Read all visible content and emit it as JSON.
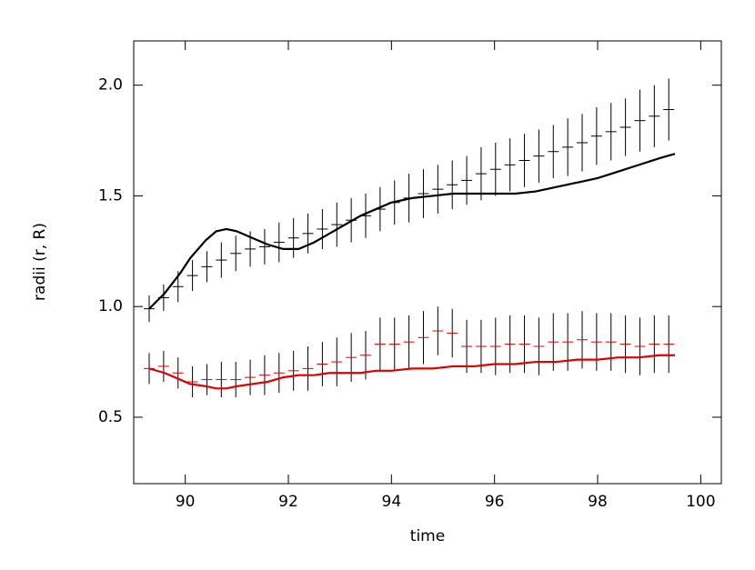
{
  "chart_data": {
    "type": "errorbar_line",
    "xlabel": "time",
    "ylabel": "radii (r, R)",
    "xlim": [
      89,
      100.4
    ],
    "ylim": [
      0.2,
      2.2
    ],
    "xticks": [
      90,
      92,
      94,
      96,
      98,
      100
    ],
    "yticks": [
      0.5,
      {
        "value": 1,
        "label": "1.0"
      },
      1.5,
      {
        "value": 2,
        "label": "2.0"
      }
    ],
    "series": [
      {
        "mode": "errorbar",
        "color": "#000000",
        "x": [
          89.3,
          89.58,
          89.86,
          90.14,
          90.42,
          90.7,
          90.98,
          91.26,
          91.54,
          91.82,
          92.1,
          92.38,
          92.66,
          92.94,
          93.22,
          93.5,
          93.78,
          94.06,
          94.34,
          94.62,
          94.9,
          95.18,
          95.46,
          95.74,
          96.02,
          96.3,
          96.58,
          96.86,
          97.14,
          97.42,
          97.7,
          97.98,
          98.26,
          98.54,
          98.82,
          99.1,
          99.38
        ],
        "values": [
          0.99,
          1.04,
          1.09,
          1.14,
          1.18,
          1.21,
          1.24,
          1.26,
          1.27,
          1.29,
          1.31,
          1.33,
          1.35,
          1.37,
          1.39,
          1.41,
          1.44,
          1.47,
          1.49,
          1.51,
          1.53,
          1.55,
          1.57,
          1.6,
          1.62,
          1.64,
          1.66,
          1.68,
          1.7,
          1.72,
          1.74,
          1.77,
          1.79,
          1.81,
          1.84,
          1.86,
          1.89
        ],
        "errors": [
          0.06,
          0.06,
          0.07,
          0.07,
          0.07,
          0.08,
          0.08,
          0.08,
          0.08,
          0.09,
          0.09,
          0.09,
          0.09,
          0.1,
          0.1,
          0.1,
          0.1,
          0.1,
          0.11,
          0.11,
          0.11,
          0.11,
          0.11,
          0.12,
          0.12,
          0.12,
          0.12,
          0.12,
          0.12,
          0.13,
          0.13,
          0.13,
          0.13,
          0.13,
          0.14,
          0.14,
          0.14
        ]
      },
      {
        "mode": "errorbar",
        "color": "#e00000",
        "x": [
          89.3,
          89.58,
          89.86,
          90.14,
          90.42,
          90.7,
          90.98,
          91.26,
          91.54,
          91.82,
          92.1,
          92.38,
          92.66,
          92.94,
          93.22,
          93.5,
          93.78,
          94.06,
          94.34,
          94.62,
          94.9,
          95.18,
          95.46,
          95.74,
          96.02,
          96.3,
          96.58,
          96.86,
          97.14,
          97.42,
          97.7,
          97.98,
          98.26,
          98.54,
          98.82,
          99.1,
          99.38
        ],
        "values": [
          0.72,
          0.73,
          0.7,
          0.66,
          0.67,
          0.67,
          0.67,
          0.68,
          0.69,
          0.7,
          0.71,
          0.72,
          0.74,
          0.75,
          0.77,
          0.78,
          0.83,
          0.83,
          0.84,
          0.86,
          0.89,
          0.88,
          0.82,
          0.82,
          0.82,
          0.83,
          0.83,
          0.82,
          0.84,
          0.84,
          0.85,
          0.84,
          0.84,
          0.83,
          0.82,
          0.83,
          0.83
        ],
        "errors": [
          0.07,
          0.07,
          0.07,
          0.07,
          0.07,
          0.08,
          0.08,
          0.08,
          0.09,
          0.09,
          0.09,
          0.1,
          0.1,
          0.11,
          0.11,
          0.11,
          0.12,
          0.12,
          0.12,
          0.12,
          0.11,
          0.11,
          0.12,
          0.12,
          0.13,
          0.13,
          0.13,
          0.13,
          0.13,
          0.13,
          0.13,
          0.13,
          0.13,
          0.13,
          0.13,
          0.13,
          0.13
        ]
      },
      {
        "mode": "line",
        "color": "#000000",
        "x": [
          89.3,
          89.6,
          89.9,
          90.1,
          90.4,
          90.6,
          90.8,
          91.0,
          91.3,
          91.6,
          91.9,
          92.2,
          92.5,
          92.8,
          93.1,
          93.4,
          93.7,
          94.0,
          94.4,
          94.8,
          95.2,
          95.6,
          96.0,
          96.4,
          96.8,
          97.2,
          97.6,
          98.0,
          98.4,
          98.8,
          99.2,
          99.5
        ],
        "values": [
          0.99,
          1.06,
          1.15,
          1.22,
          1.3,
          1.34,
          1.35,
          1.34,
          1.31,
          1.28,
          1.26,
          1.26,
          1.29,
          1.33,
          1.37,
          1.41,
          1.44,
          1.47,
          1.49,
          1.5,
          1.51,
          1.51,
          1.51,
          1.51,
          1.52,
          1.54,
          1.56,
          1.58,
          1.61,
          1.64,
          1.67,
          1.69
        ]
      },
      {
        "mode": "line",
        "color": "#e00000",
        "x": [
          89.3,
          89.6,
          89.9,
          90.1,
          90.4,
          90.6,
          90.8,
          91.0,
          91.3,
          91.6,
          91.9,
          92.2,
          92.5,
          92.8,
          93.1,
          93.4,
          93.7,
          94.0,
          94.4,
          94.8,
          95.2,
          95.6,
          96.0,
          96.4,
          96.8,
          97.2,
          97.6,
          98.0,
          98.4,
          98.8,
          99.2,
          99.5
        ],
        "values": [
          0.72,
          0.7,
          0.67,
          0.65,
          0.64,
          0.63,
          0.63,
          0.64,
          0.65,
          0.66,
          0.68,
          0.69,
          0.69,
          0.7,
          0.7,
          0.7,
          0.71,
          0.71,
          0.72,
          0.72,
          0.73,
          0.73,
          0.74,
          0.74,
          0.75,
          0.75,
          0.76,
          0.76,
          0.77,
          0.77,
          0.78,
          0.78
        ]
      }
    ]
  }
}
